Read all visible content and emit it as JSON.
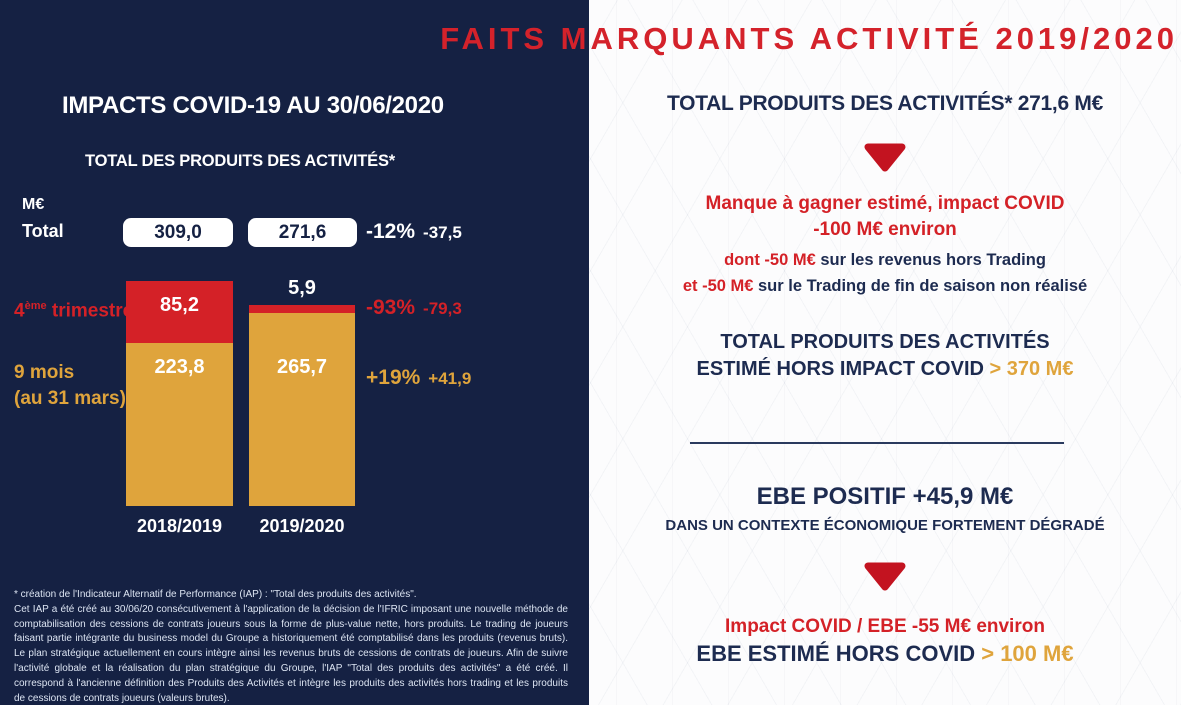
{
  "header": {
    "title": "FAITS MARQUANTS ACTIVITÉ 2019/2020"
  },
  "colors": {
    "navy_panel": "#152143",
    "navy_text": "#1d2b50",
    "red": "#d42127",
    "gold": "#dfa43c",
    "title_red": "#d4222b",
    "arrow_red": "#c31320"
  },
  "left_panel": {
    "title": "IMPACTS COVID-19 AU 30/06/2020",
    "chart_title": "TOTAL DES PRODUITS DES ACTIVITÉS*",
    "unit": "M€",
    "total_row": {
      "label": "Total",
      "value_2018": "309,0",
      "value_2019": "271,6",
      "pct": "-12%",
      "abs": "-37,5"
    },
    "q4_row": {
      "label_base": "4",
      "label_sup": "ème",
      "label_rest": " trimestre",
      "value_2018": "85,2",
      "value_2019": "5,9",
      "pct": "-93%",
      "abs": "-79,3"
    },
    "ninemois_row": {
      "label_line1": "9 mois",
      "label_line2": "(au 31 mars)",
      "value_2018": "223,8",
      "value_2019": "265,7",
      "pct": "+19%",
      "abs": "+41,9"
    },
    "x_labels": [
      "2018/2019",
      "2019/2020"
    ],
    "footnote_line1": "* création de l'Indicateur Alternatif de Performance (IAP) : \"Total des produits des activités\".",
    "footnote_paragraph": "Cet IAP a été créé au 30/06/20 consécutivement à l'application de la décision de l'IFRIC imposant une nouvelle méthode de comptabilisation des cessions de contrats joueurs sous la forme de plus-value nette, hors produits. Le trading de joueurs faisant partie intégrante du business model du Groupe a historiquement été comptabilisé dans les produits (revenus bruts). Le plan stratégique actuellement en cours intègre ainsi les revenus bruts de cessions de contrats de joueurs. Afin de suivre l'activité globale et la réalisation du plan stratégique du Groupe, l'IAP \"Total des produits des activités\" a été créé. Il correspond à l'ancienne définition des Produits des Activités et intègre les produits des activités hors trading et les produits de cessions de contrats joueurs (valeurs brutes)."
  },
  "chart_data": {
    "type": "bar",
    "stacked": true,
    "title": "TOTAL DES PRODUITS DES ACTIVITÉS*",
    "ylabel": "M€",
    "categories": [
      "2018/2019",
      "2019/2020"
    ],
    "series": [
      {
        "name": "4ème trimestre",
        "color": "#d42127",
        "values": [
          85.2,
          5.9
        ],
        "change_pct": "-93%",
        "change_abs": -79.3
      },
      {
        "name": "9 mois (au 31 mars)",
        "color": "#dfa43c",
        "values": [
          223.8,
          265.7
        ],
        "change_pct": "+19%",
        "change_abs": 41.9
      }
    ],
    "totals": [
      309.0,
      271.6
    ],
    "total_change_pct": "-12%",
    "total_change_abs": -37.5,
    "legend_position": "left-row-labels",
    "grid": false
  },
  "right_panel": {
    "s1_title": "TOTAL PRODUITS DES ACTIVITÉS* 271,6 M€",
    "s1_red_line1": "Manque à gagner estimé, impact COVID",
    "s1_red_line2": "-100 M€ environ",
    "s1_detail1_red": "dont -50 M€",
    "s1_detail1_navy": " sur les revenus hors Trading",
    "s1_detail2_red": "et -50 M€",
    "s1_detail2_navy": " sur le Trading de fin de saison non réalisé",
    "s2_line1": "TOTAL PRODUITS DES ACTIVITÉS",
    "s2_line2_navy": "ESTIMÉ HORS IMPACT COVID ",
    "s2_line2_gold": "> 370 M€",
    "s3_line1": "EBE POSITIF +45,9 M€",
    "s3_line2": "DANS UN CONTEXTE ÉCONOMIQUE FORTEMENT DÉGRADÉ",
    "s4_red": "Impact COVID / EBE -55 M€ environ",
    "s4_navy": "EBE ESTIMÉ HORS COVID ",
    "s4_gold": "> 100 M€"
  }
}
